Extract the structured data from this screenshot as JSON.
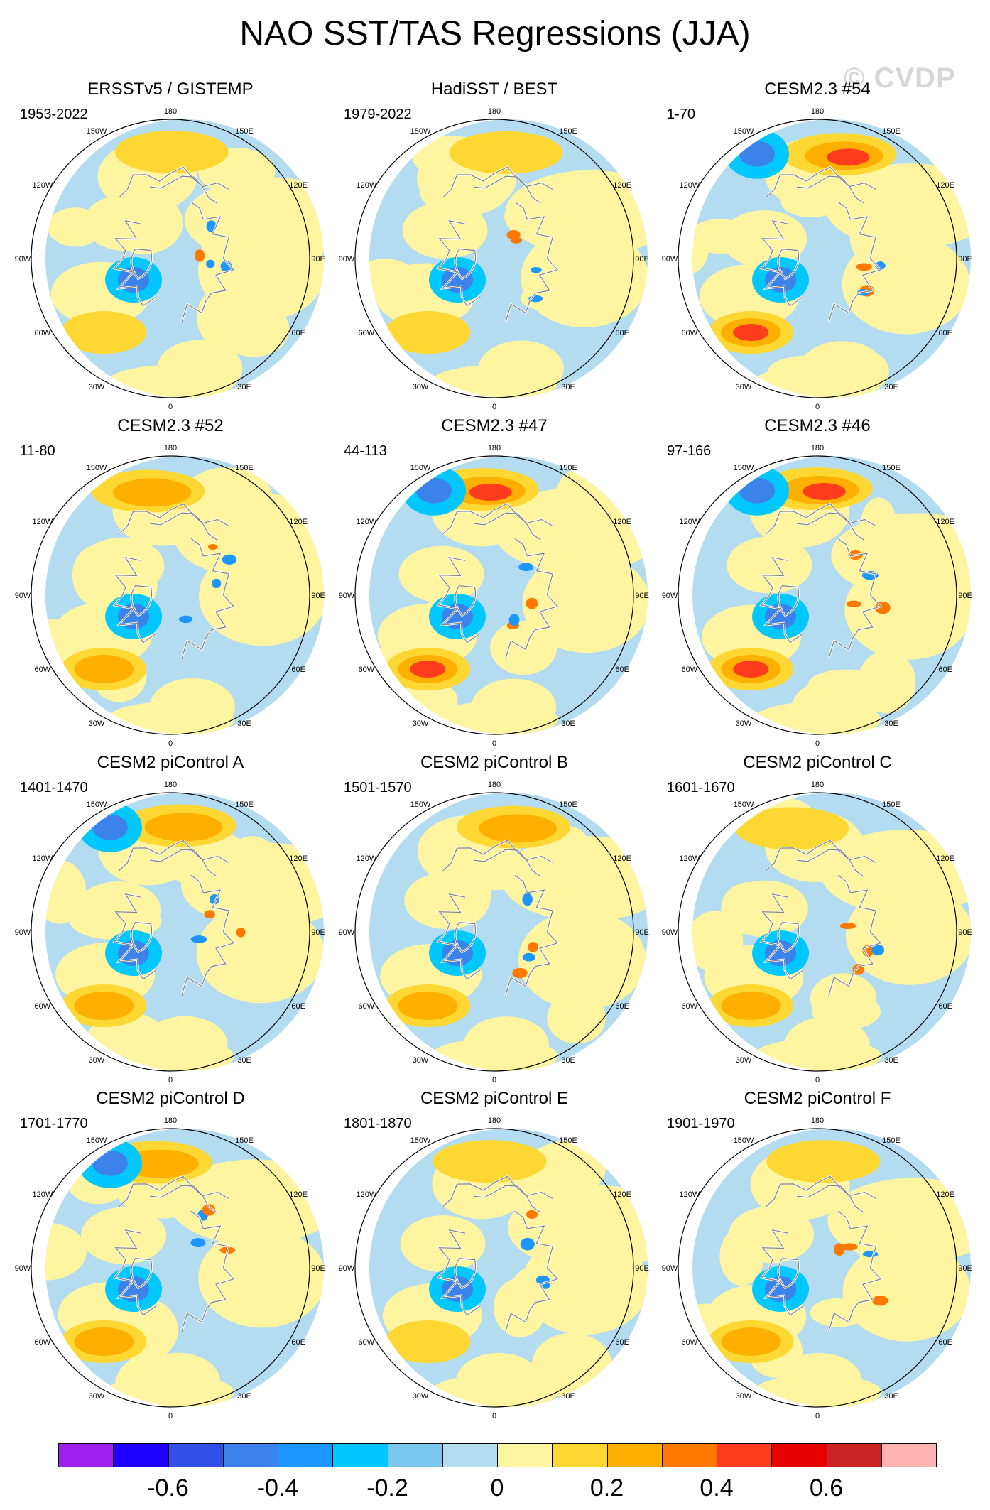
{
  "title": "NAO SST/TAS Regressions (JJA)",
  "watermark": "© CVDP",
  "lon_labels": [
    "180",
    "150E",
    "120E",
    "90E",
    "60E",
    "30E",
    "0",
    "30W",
    "60W",
    "90W",
    "120W",
    "150W"
  ],
  "panels": [
    {
      "title": "ERSSTv5 / GISTEMP",
      "years": "1953-2022"
    },
    {
      "title": "HadiSST / BEST",
      "years": "1979-2022"
    },
    {
      "title": "CESM2.3 #54",
      "years": "1-70"
    },
    {
      "title": "CESM2.3 #52",
      "years": "11-80"
    },
    {
      "title": "CESM2.3 #47",
      "years": "44-113"
    },
    {
      "title": "CESM2.3 #46",
      "years": "97-166"
    },
    {
      "title": "CESM2 piControl A",
      "years": "1401-1470"
    },
    {
      "title": "CESM2 piControl B",
      "years": "1501-1570"
    },
    {
      "title": "CESM2 piControl C",
      "years": "1601-1670"
    },
    {
      "title": "CESM2 piControl D",
      "years": "1701-1770"
    },
    {
      "title": "CESM2 piControl E",
      "years": "1801-1870"
    },
    {
      "title": "CESM2 piControl F",
      "years": "1901-1970"
    }
  ],
  "colorbar": {
    "colors": [
      "#a020f0",
      "#1e00ff",
      "#3250e6",
      "#3c82eb",
      "#1e96ff",
      "#00c8ff",
      "#78c8f0",
      "#b4dcf0",
      "#fff5a0",
      "#ffd732",
      "#ffaf00",
      "#ff7800",
      "#ff3c1e",
      "#e60000",
      "#cd2323",
      "#ffb4b4"
    ],
    "labels": [
      "-0.6",
      "-0.4",
      "-0.2",
      "0",
      "0.2",
      "0.4",
      "0.6"
    ],
    "label_values": [
      -0.6,
      -0.4,
      -0.2,
      0,
      0.2,
      0.4,
      0.6
    ],
    "min": -0.8,
    "max": 0.8
  }
}
